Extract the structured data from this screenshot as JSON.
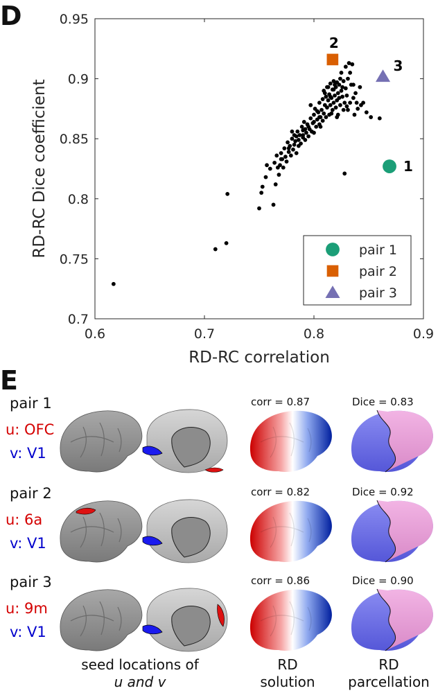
{
  "panel_d": {
    "letter": "D"
  },
  "panel_e": {
    "letter": "E",
    "rows": [
      {
        "pair": "pair 1",
        "u": "u: OFC",
        "v": "v: V1",
        "corr": "corr = 0.87",
        "dice": "Dice = 0.83"
      },
      {
        "pair": "pair 2",
        "u": "u: 6a",
        "v": "v: V1",
        "corr": "corr = 0.82",
        "dice": "Dice = 0.92"
      },
      {
        "pair": "pair 3",
        "u": "u: 9m",
        "v": "v: V1",
        "corr": "corr = 0.86",
        "dice": "Dice = 0.90"
      }
    ],
    "captions": {
      "seed": [
        "seed locations of",
        "u and v"
      ],
      "solution": [
        "RD",
        "solution"
      ],
      "parcellation": [
        "RD",
        "parcellation"
      ]
    }
  },
  "chart_data": {
    "type": "scatter",
    "title": "",
    "xlabel": "RD-RC correlation",
    "ylabel": "RD-RC Dice coefficient",
    "xlim": [
      0.6,
      0.9
    ],
    "ylim": [
      0.7,
      0.95
    ],
    "xticks": [
      0.6,
      0.7,
      0.8,
      0.9
    ],
    "xtick_labels": [
      "0.6",
      "0.7",
      "0.8",
      "0.9"
    ],
    "yticks": [
      0.7,
      0.75,
      0.8,
      0.85,
      0.9,
      0.95
    ],
    "ytick_labels": [
      "0.7",
      "0.75",
      "0.8",
      "0.85",
      "0.9",
      "0.95"
    ],
    "grid": false,
    "legend_position": "bottom-right",
    "legend": [
      "pair 1",
      "pair 2",
      "pair 3"
    ],
    "highlights": [
      {
        "name": "pair 1",
        "label": "1",
        "x": 0.869,
        "y": 0.827,
        "marker": "circle",
        "color": "#1b9e77"
      },
      {
        "name": "pair 2",
        "label": "2",
        "x": 0.817,
        "y": 0.916,
        "marker": "square",
        "color": "#d95f02"
      },
      {
        "name": "pair 3",
        "label": "3",
        "x": 0.863,
        "y": 0.902,
        "marker": "triangle",
        "color": "#7570b3"
      }
    ],
    "points": [
      [
        0.617,
        0.729
      ],
      [
        0.71,
        0.758
      ],
      [
        0.72,
        0.763
      ],
      [
        0.721,
        0.804
      ],
      [
        0.75,
        0.792
      ],
      [
        0.752,
        0.805
      ],
      [
        0.753,
        0.81
      ],
      [
        0.756,
        0.818
      ],
      [
        0.757,
        0.828
      ],
      [
        0.76,
        0.825
      ],
      [
        0.763,
        0.795
      ],
      [
        0.764,
        0.83
      ],
      [
        0.765,
        0.812
      ],
      [
        0.766,
        0.836
      ],
      [
        0.768,
        0.82
      ],
      [
        0.769,
        0.828
      ],
      [
        0.77,
        0.838
      ],
      [
        0.771,
        0.833
      ],
      [
        0.772,
        0.826
      ],
      [
        0.773,
        0.842
      ],
      [
        0.774,
        0.835
      ],
      [
        0.775,
        0.831
      ],
      [
        0.776,
        0.847
      ],
      [
        0.777,
        0.839
      ],
      [
        0.778,
        0.844
      ],
      [
        0.779,
        0.836
      ],
      [
        0.78,
        0.85
      ],
      [
        0.781,
        0.841
      ],
      [
        0.782,
        0.845
      ],
      [
        0.782,
        0.853
      ],
      [
        0.783,
        0.848
      ],
      [
        0.784,
        0.838
      ],
      [
        0.785,
        0.856
      ],
      [
        0.786,
        0.849
      ],
      [
        0.787,
        0.853
      ],
      [
        0.788,
        0.846
      ],
      [
        0.789,
        0.86
      ],
      [
        0.79,
        0.851
      ],
      [
        0.79,
        0.857
      ],
      [
        0.791,
        0.864
      ],
      [
        0.792,
        0.849
      ],
      [
        0.793,
        0.855
      ],
      [
        0.794,
        0.862
      ],
      [
        0.795,
        0.852
      ],
      [
        0.796,
        0.858
      ],
      [
        0.797,
        0.867
      ],
      [
        0.797,
        0.878
      ],
      [
        0.798,
        0.856
      ],
      [
        0.799,
        0.863
      ],
      [
        0.8,
        0.87
      ],
      [
        0.8,
        0.855
      ],
      [
        0.801,
        0.875
      ],
      [
        0.802,
        0.86
      ],
      [
        0.803,
        0.866
      ],
      [
        0.804,
        0.872
      ],
      [
        0.805,
        0.862
      ],
      [
        0.805,
        0.88
      ],
      [
        0.806,
        0.868
      ],
      [
        0.807,
        0.874
      ],
      [
        0.808,
        0.883
      ],
      [
        0.808,
        0.865
      ],
      [
        0.809,
        0.871
      ],
      [
        0.81,
        0.878
      ],
      [
        0.81,
        0.888
      ],
      [
        0.811,
        0.868
      ],
      [
        0.812,
        0.876
      ],
      [
        0.812,
        0.893
      ],
      [
        0.813,
        0.882
      ],
      [
        0.814,
        0.87
      ],
      [
        0.814,
        0.887
      ],
      [
        0.815,
        0.878
      ],
      [
        0.815,
        0.896
      ],
      [
        0.816,
        0.884
      ],
      [
        0.817,
        0.874
      ],
      [
        0.817,
        0.891
      ],
      [
        0.818,
        0.88
      ],
      [
        0.818,
        0.898
      ],
      [
        0.819,
        0.886
      ],
      [
        0.82,
        0.876
      ],
      [
        0.82,
        0.893
      ],
      [
        0.821,
        0.882
      ],
      [
        0.822,
        0.888
      ],
      [
        0.822,
        0.87
      ],
      [
        0.823,
        0.895
      ],
      [
        0.823,
        0.884
      ],
      [
        0.824,
        0.878
      ],
      [
        0.825,
        0.89
      ],
      [
        0.825,
        0.905
      ],
      [
        0.826,
        0.885
      ],
      [
        0.827,
        0.874
      ],
      [
        0.827,
        0.898
      ],
      [
        0.828,
        0.88
      ],
      [
        0.829,
        0.892
      ],
      [
        0.829,
        0.91
      ],
      [
        0.83,
        0.886
      ],
      [
        0.831,
        0.874
      ],
      [
        0.831,
        0.9
      ],
      [
        0.832,
        0.913
      ],
      [
        0.833,
        0.88
      ],
      [
        0.834,
        0.895
      ],
      [
        0.835,
        0.912
      ],
      [
        0.836,
        0.884
      ],
      [
        0.837,
        0.87
      ],
      [
        0.838,
        0.888
      ],
      [
        0.84,
        0.875
      ],
      [
        0.842,
        0.893
      ],
      [
        0.845,
        0.88
      ],
      [
        0.848,
        0.872
      ],
      [
        0.852,
        0.868
      ],
      [
        0.86,
        0.867
      ],
      [
        0.828,
        0.821
      ],
      [
        0.78,
        0.856
      ],
      [
        0.792,
        0.858
      ],
      [
        0.803,
        0.873
      ],
      [
        0.806,
        0.86
      ],
      [
        0.811,
        0.885
      ],
      [
        0.816,
        0.871
      ],
      [
        0.819,
        0.895
      ],
      [
        0.821,
        0.868
      ],
      [
        0.824,
        0.9
      ],
      [
        0.826,
        0.893
      ],
      [
        0.83,
        0.877
      ],
      [
        0.833,
        0.905
      ],
      [
        0.836,
        0.895
      ],
      [
        0.839,
        0.88
      ],
      [
        0.843,
        0.878
      ],
      [
        0.815,
        0.885
      ],
      [
        0.809,
        0.89
      ],
      [
        0.813,
        0.893
      ],
      [
        0.818,
        0.891
      ],
      [
        0.821,
        0.897
      ],
      [
        0.805,
        0.868
      ],
      [
        0.8,
        0.864
      ],
      [
        0.795,
        0.86
      ],
      [
        0.79,
        0.853
      ],
      [
        0.786,
        0.844
      ],
      [
        0.784,
        0.852
      ],
      [
        0.777,
        0.842
      ],
      [
        0.77,
        0.833
      ],
      [
        0.767,
        0.826
      ]
    ]
  }
}
